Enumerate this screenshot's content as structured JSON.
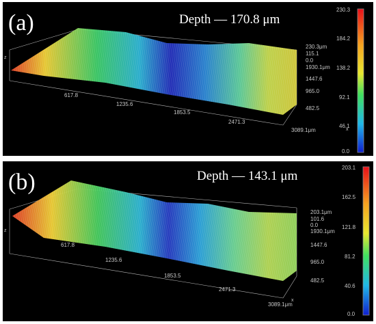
{
  "panels": [
    {
      "label": "(a)",
      "depth_text": "Depth — 170.8 μm",
      "x_ticks": [
        "617.8",
        "1235.6",
        "1853.5",
        "2471.3",
        "3089.1μm"
      ],
      "y_ticks": [
        "1930.1μm",
        "1447.6",
        "965.0",
        "482.5"
      ],
      "z_ticks": [
        "230.3μm",
        "115.1",
        "0.0"
      ],
      "colorbar_ticks": [
        "230.3",
        "184.2",
        "138.2",
        "92.1",
        "46.1",
        "0.0"
      ],
      "axis_z": "z",
      "axis_x": "x"
    },
    {
      "label": "(b)",
      "depth_text": "Depth — 143.1 μm",
      "x_ticks": [
        "617.8",
        "1235.6",
        "1853.5",
        "2471.3",
        "3089.1μm"
      ],
      "y_ticks": [
        "1930.1μm",
        "1447.6",
        "965.0",
        "482.5"
      ],
      "z_ticks": [
        "203.1μm",
        "101.6",
        "0.0"
      ],
      "colorbar_ticks": [
        "203.1",
        "162.5",
        "121.8",
        "81.2",
        "40.6",
        "0.0"
      ],
      "axis_z": "z",
      "axis_x": "x"
    }
  ],
  "colors": {
    "background": "#000000",
    "surface_high": "#e0402a",
    "surface_mid": "#f0d23a",
    "surface_low": "#2a35c8",
    "colorbar_top": "#e8101a",
    "colorbar_bottom": "#1020d0"
  }
}
